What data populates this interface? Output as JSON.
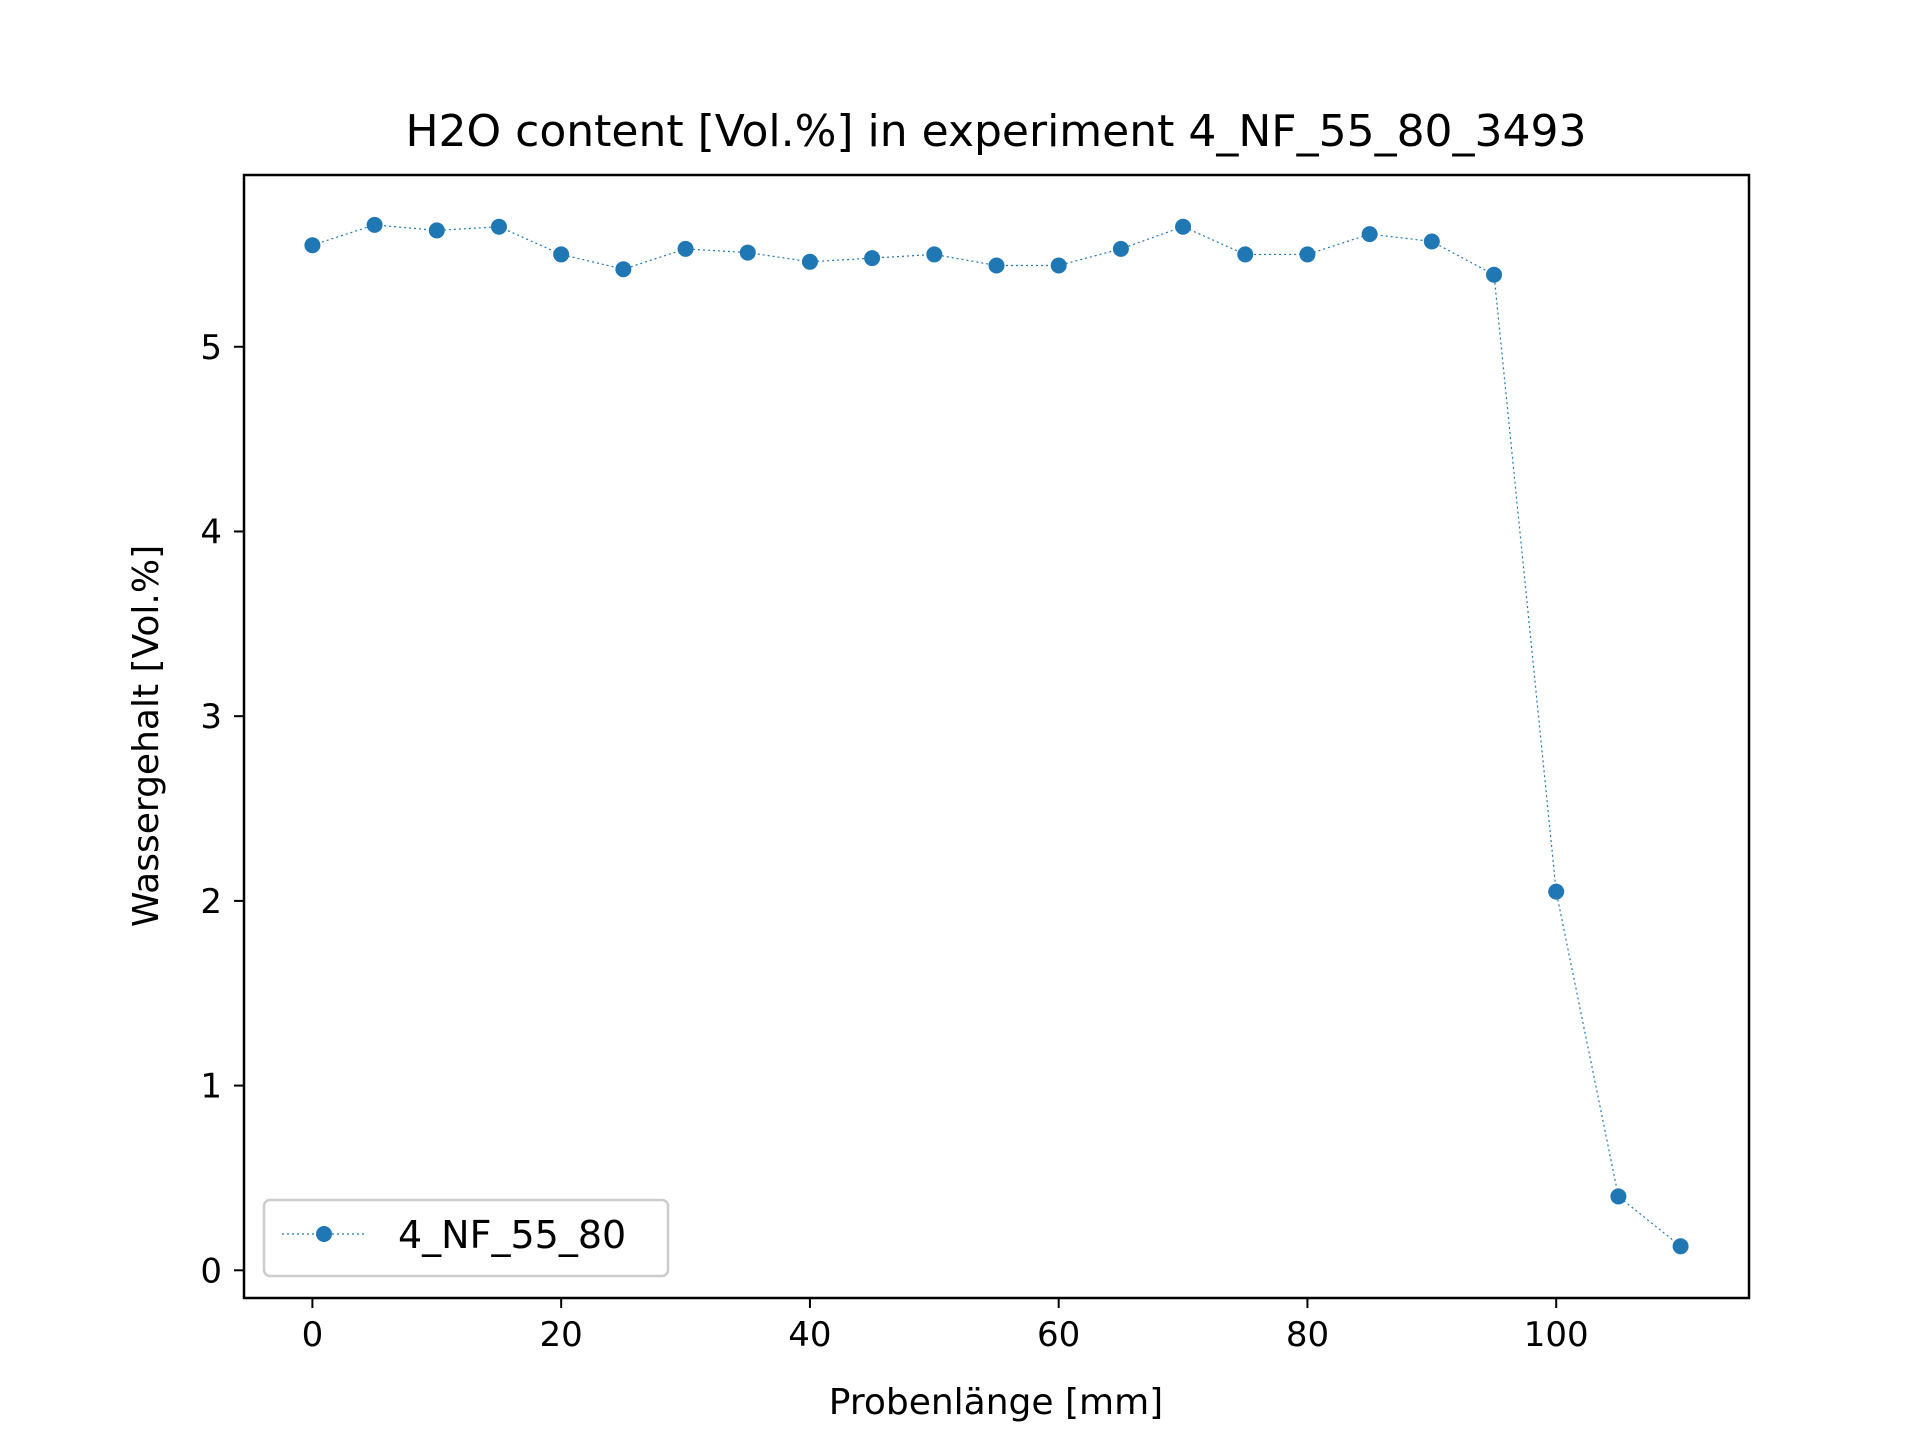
{
  "chart_data": {
    "type": "line",
    "title": "H2O content [Vol.%] in experiment 4_NF_55_80_3493",
    "xlabel": "Probenlänge [mm]",
    "ylabel": "Wassergehalt [Vol.%]",
    "xlim": [
      -5.5,
      115.5
    ],
    "ylim": [
      -0.15,
      5.93
    ],
    "xticks": [
      0,
      20,
      40,
      60,
      80,
      100
    ],
    "yticks": [
      0,
      1,
      2,
      3,
      4,
      5
    ],
    "grid": false,
    "legend_position": "lower-left",
    "series": [
      {
        "name": "4_NF_55_80",
        "color": "#1f77b4",
        "line_style": "dotted",
        "marker": "circle",
        "x": [
          0,
          5,
          10,
          15,
          20,
          25,
          30,
          35,
          40,
          45,
          50,
          55,
          60,
          65,
          70,
          75,
          80,
          85,
          90,
          95,
          100,
          105,
          110
        ],
        "y": [
          5.55,
          5.66,
          5.63,
          5.65,
          5.5,
          5.42,
          5.53,
          5.51,
          5.46,
          5.48,
          5.5,
          5.44,
          5.44,
          5.53,
          5.65,
          5.5,
          5.5,
          5.61,
          5.57,
          5.39,
          2.05,
          0.4,
          0.13
        ]
      }
    ]
  }
}
